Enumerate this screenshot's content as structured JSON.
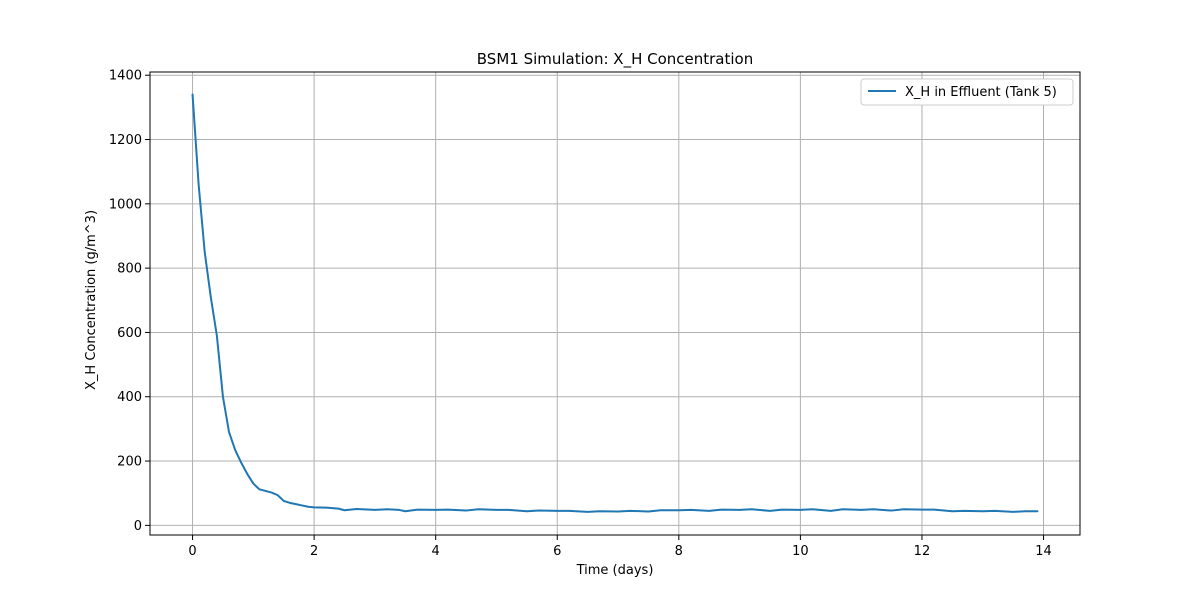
{
  "chart_data": {
    "type": "line",
    "title": "BSM1 Simulation: X_H Concentration",
    "xlabel": "Time (days)",
    "ylabel": "X_H Concentration (g/m^3)",
    "xlim": [
      -0.7,
      14.6
    ],
    "ylim": [
      -30,
      1410
    ],
    "xticks": [
      0,
      2,
      4,
      6,
      8,
      10,
      12,
      14
    ],
    "yticks": [
      0,
      200,
      400,
      600,
      800,
      1000,
      1200,
      1400
    ],
    "grid": true,
    "legend_position": "top-right",
    "series": [
      {
        "name": "X_H in Effluent (Tank 5)",
        "color": "#1f77b4",
        "x": [
          0.0,
          0.1,
          0.2,
          0.3,
          0.4,
          0.5,
          0.6,
          0.7,
          0.8,
          0.9,
          1.0,
          1.1,
          1.2,
          1.3,
          1.4,
          1.5,
          1.6,
          1.7,
          1.8,
          1.9,
          2.0,
          2.2,
          2.4,
          2.5,
          2.7,
          3.0,
          3.2,
          3.4,
          3.5,
          3.7,
          4.0,
          4.2,
          4.5,
          4.7,
          5.0,
          5.2,
          5.5,
          5.7,
          6.0,
          6.2,
          6.5,
          6.7,
          7.0,
          7.2,
          7.5,
          7.7,
          8.0,
          8.2,
          8.5,
          8.7,
          9.0,
          9.2,
          9.5,
          9.7,
          10.0,
          10.2,
          10.5,
          10.7,
          11.0,
          11.2,
          11.5,
          11.7,
          12.0,
          12.2,
          12.5,
          12.7,
          13.0,
          13.2,
          13.5,
          13.7,
          13.9
        ],
        "y": [
          1340,
          1060,
          850,
          710,
          590,
          400,
          290,
          235,
          195,
          160,
          130,
          112,
          107,
          102,
          94,
          76,
          70,
          66,
          62,
          58,
          56,
          55,
          52,
          47,
          51,
          48,
          50,
          48,
          44,
          49,
          48,
          49,
          46,
          50,
          48,
          48,
          44,
          46,
          45,
          45,
          42,
          44,
          43,
          45,
          43,
          47,
          47,
          48,
          45,
          49,
          48,
          50,
          45,
          49,
          48,
          50,
          45,
          50,
          48,
          50,
          46,
          50,
          49,
          49,
          44,
          45,
          44,
          45,
          42,
          44,
          44
        ]
      }
    ]
  }
}
